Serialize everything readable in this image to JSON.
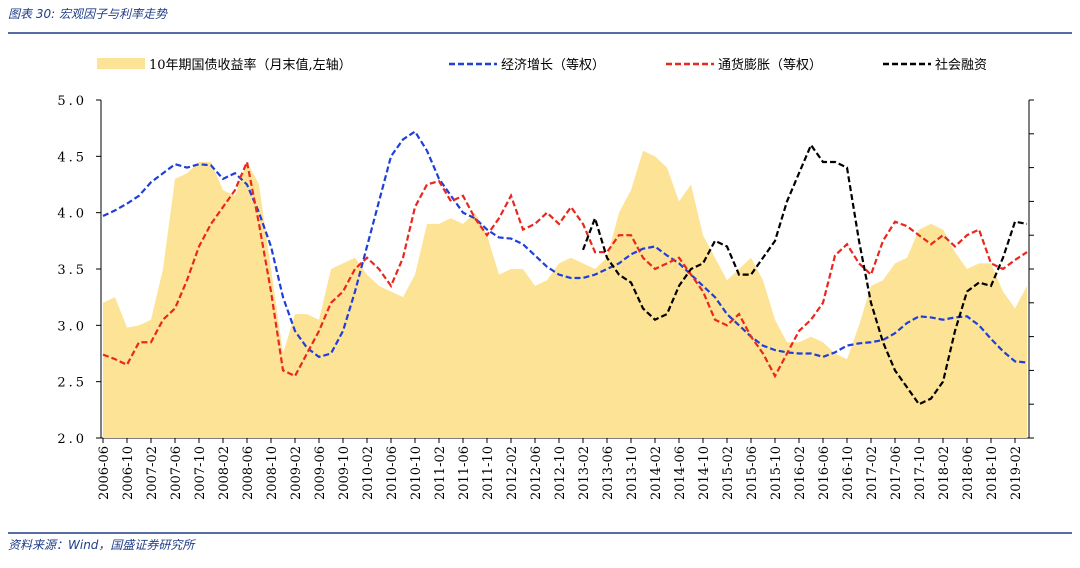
{
  "header": {
    "title": "图表 30: 宏观因子与利率走势"
  },
  "footer": {
    "source": "资料来源：Wind，国盛证券研究所"
  },
  "chart_data": {
    "type": "line",
    "categories": [
      "2006-06",
      null,
      "2006-10",
      null,
      "2007-02",
      null,
      "2007-06",
      null,
      "2007-10",
      null,
      "2008-02",
      null,
      "2008-06",
      null,
      "2008-10",
      null,
      "2009-02",
      null,
      "2009-06",
      null,
      "2009-10",
      null,
      "2010-02",
      null,
      "2010-06",
      null,
      "2010-10",
      null,
      "2011-02",
      null,
      "2011-06",
      null,
      "2011-10",
      null,
      "2012-02",
      null,
      "2012-06",
      null,
      "2012-10",
      null,
      "2013-02",
      null,
      "2013-06",
      null,
      "2013-10",
      null,
      "2014-02",
      null,
      "2014-06",
      null,
      "2014-10",
      null,
      "2015-02",
      null,
      "2015-06",
      null,
      "2015-10",
      null,
      "2016-02",
      null,
      "2016-06",
      null,
      "2016-10",
      null,
      "2017-02",
      null,
      "2017-06",
      null,
      "2017-10",
      null,
      "2018-02",
      null,
      "2018-06",
      null,
      "2018-10",
      null,
      "2019-02",
      null
    ],
    "ylim": [
      2,
      5
    ],
    "yticks": [
      {
        "value": 2,
        "label": "2.0"
      },
      {
        "value": 2.5,
        "label": "2.5"
      },
      {
        "value": 3,
        "label": "3.0"
      },
      {
        "value": 3.5,
        "label": "3.5"
      },
      {
        "value": 4,
        "label": "4.0"
      },
      {
        "value": 4.5,
        "label": "4.5"
      },
      {
        "value": 5,
        "label": "5.0"
      }
    ],
    "legend": "top",
    "series": [
      {
        "name": "10年期国债收益率（月末值,左轴）",
        "color": "#fde396",
        "fill": true,
        "values": [
          3.2,
          3.25,
          2.98,
          3.0,
          3.05,
          3.5,
          4.3,
          4.35,
          4.45,
          4.45,
          4.2,
          4.15,
          4.45,
          4.25,
          3.5,
          2.75,
          3.1,
          3.1,
          3.05,
          3.5,
          3.55,
          3.6,
          3.45,
          3.35,
          3.3,
          3.25,
          3.45,
          3.9,
          3.9,
          3.95,
          3.9,
          4.0,
          3.8,
          3.45,
          3.5,
          3.5,
          3.35,
          3.4,
          3.55,
          3.6,
          3.55,
          3.5,
          3.6,
          4.0,
          4.2,
          4.55,
          4.5,
          4.4,
          4.1,
          4.25,
          3.8,
          3.6,
          3.4,
          3.5,
          3.6,
          3.4,
          3.05,
          2.85,
          2.85,
          2.9,
          2.85,
          2.75,
          2.7,
          3.0,
          3.35,
          3.4,
          3.55,
          3.6,
          3.85,
          3.9,
          3.85,
          3.65,
          3.5,
          3.55,
          3.55,
          3.3,
          3.15,
          3.35
        ]
      },
      {
        "name": "经济增长（等权）",
        "color": "#1f3fdb",
        "fill": false,
        "values": [
          3.97,
          4.02,
          4.08,
          4.15,
          4.27,
          4.35,
          4.43,
          4.4,
          4.43,
          4.42,
          4.3,
          4.35,
          4.25,
          4.0,
          3.7,
          3.25,
          2.95,
          2.8,
          2.72,
          2.75,
          2.95,
          3.3,
          3.7,
          4.1,
          4.5,
          4.65,
          4.72,
          4.55,
          4.3,
          4.15,
          4.0,
          3.95,
          3.85,
          3.78,
          3.77,
          3.72,
          3.62,
          3.52,
          3.45,
          3.42,
          3.42,
          3.45,
          3.5,
          3.55,
          3.63,
          3.68,
          3.7,
          3.62,
          3.55,
          3.45,
          3.35,
          3.25,
          3.1,
          3.0,
          2.9,
          2.82,
          2.78,
          2.76,
          2.75,
          2.75,
          2.72,
          2.76,
          2.82,
          2.84,
          2.85,
          2.87,
          2.93,
          3.02,
          3.08,
          3.07,
          3.05,
          3.07,
          3.08,
          3.0,
          2.88,
          2.77,
          2.68,
          2.67
        ]
      },
      {
        "name": "通货膨胀（等权）",
        "color": "#e8281e",
        "fill": false,
        "values": [
          2.74,
          2.7,
          2.65,
          2.85,
          2.85,
          3.05,
          3.15,
          3.4,
          3.7,
          3.9,
          4.05,
          4.2,
          4.45,
          3.9,
          3.3,
          2.6,
          2.55,
          2.75,
          2.95,
          3.2,
          3.3,
          3.5,
          3.6,
          3.5,
          3.35,
          3.6,
          4.05,
          4.25,
          4.28,
          4.1,
          4.15,
          3.95,
          3.8,
          3.95,
          4.15,
          3.85,
          3.9,
          4.0,
          3.9,
          4.05,
          3.9,
          3.65,
          3.65,
          3.8,
          3.8,
          3.6,
          3.5,
          3.55,
          3.6,
          3.45,
          3.3,
          3.05,
          3.0,
          3.1,
          2.9,
          2.75,
          2.55,
          2.75,
          2.95,
          3.05,
          3.2,
          3.62,
          3.72,
          3.55,
          3.45,
          3.75,
          3.92,
          3.88,
          3.8,
          3.72,
          3.8,
          3.7,
          3.8,
          3.85,
          3.55,
          3.5,
          3.58,
          3.65
        ]
      },
      {
        "name": "社会融资",
        "color": "#000000",
        "fill": false,
        "values": [
          null,
          null,
          null,
          null,
          null,
          null,
          null,
          null,
          null,
          null,
          null,
          null,
          null,
          null,
          null,
          null,
          null,
          null,
          null,
          null,
          null,
          null,
          null,
          null,
          null,
          null,
          null,
          null,
          null,
          null,
          null,
          null,
          null,
          null,
          null,
          null,
          null,
          null,
          null,
          null,
          3.67,
          3.95,
          3.6,
          3.45,
          3.38,
          3.15,
          3.05,
          3.1,
          3.35,
          3.5,
          3.55,
          3.75,
          3.7,
          3.45,
          3.45,
          3.6,
          3.75,
          4.1,
          4.35,
          4.6,
          4.45,
          4.45,
          4.4,
          3.75,
          3.2,
          2.85,
          2.6,
          2.45,
          2.3,
          2.35,
          2.5,
          2.95,
          3.3,
          3.38,
          3.35,
          3.6,
          3.92,
          3.9
        ]
      }
    ]
  }
}
